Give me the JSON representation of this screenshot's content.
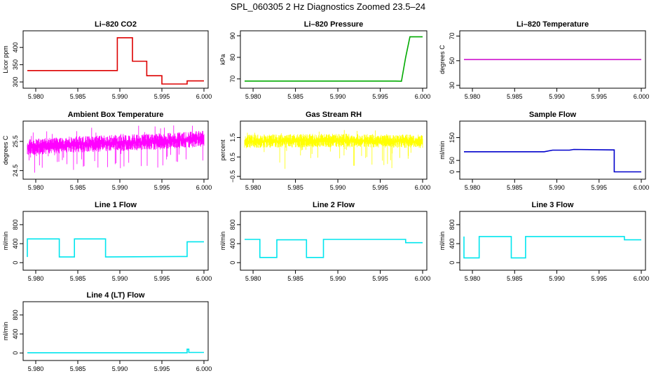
{
  "page_title": "SPL_060305  2 Hz Diagnostics Zoomed 23.5–24",
  "chart_data": [
    {
      "type": "line",
      "title": "Li–820 CO2",
      "ylabel": "Licor ppm",
      "color": "#dd0000",
      "xlim": [
        5.979,
        6.0
      ],
      "ylim": [
        290,
        440
      ],
      "yticks": [
        "300",
        "350",
        "400"
      ],
      "ytick_values": [
        300,
        350,
        400
      ],
      "xticks": [
        "5.980",
        "5.985",
        "5.990",
        "5.995",
        "6.000"
      ],
      "xtick_values": [
        5.98,
        5.985,
        5.99,
        5.995,
        6.0
      ],
      "series": [
        {
          "x": [
            5.979,
            5.9897,
            5.9897,
            5.9915,
            5.9915,
            5.9932,
            5.9932,
            5.995,
            5.995,
            5.998,
            5.998,
            6.0
          ],
          "y": [
            333,
            333,
            428,
            428,
            360,
            360,
            318,
            318,
            294,
            294,
            303,
            303
          ]
        }
      ]
    },
    {
      "type": "line",
      "title": "Li–820 Pressure",
      "ylabel": "kPa",
      "color": "#00aa00",
      "xlim": [
        5.979,
        6.0
      ],
      "ylim": [
        67,
        91
      ],
      "yticks": [
        "70",
        "80",
        "90"
      ],
      "ytick_values": [
        70,
        80,
        90
      ],
      "xticks": [
        "5.980",
        "5.985",
        "5.990",
        "5.995",
        "6.000"
      ],
      "xtick_values": [
        5.98,
        5.985,
        5.99,
        5.995,
        6.0
      ],
      "series": [
        {
          "x": [
            5.979,
            5.9968,
            5.9975,
            5.998,
            5.9985,
            6.0
          ],
          "y": [
            69,
            69,
            68.9,
            80,
            89.5,
            89.5
          ]
        }
      ]
    },
    {
      "type": "line",
      "title": "Li–820 Temperature",
      "ylabel": "degrees C",
      "color": "#cc00cc",
      "xlim": [
        5.979,
        6.0
      ],
      "ylim": [
        30,
        72
      ],
      "yticks": [
        "30",
        "50",
        "70"
      ],
      "ytick_values": [
        30,
        50,
        70
      ],
      "xticks": [
        "5.980",
        "5.985",
        "5.990",
        "5.995",
        "6.000"
      ],
      "xtick_values": [
        5.98,
        5.985,
        5.99,
        5.995,
        6.0
      ],
      "series": [
        {
          "x": [
            5.979,
            6.0
          ],
          "y": [
            51,
            51
          ]
        }
      ]
    },
    {
      "type": "line",
      "title": "Ambient Box Temperature",
      "ylabel": "degrees C",
      "color": "#ff00ff",
      "xlim": [
        5.979,
        6.0
      ],
      "ylim": [
        24.3,
        26.1
      ],
      "yticks": [
        "24.5",
        "25.5"
      ],
      "ytick_values": [
        24.5,
        25.5
      ],
      "xticks": [
        "5.980",
        "5.985",
        "5.990",
        "5.995",
        "6.000"
      ],
      "xtick_values": [
        5.98,
        5.985,
        5.99,
        5.995,
        6.0
      ],
      "series": [
        {
          "x": [
            5.979,
            5.985,
            5.99,
            5.995,
            6.0
          ],
          "y": [
            25.3,
            25.4,
            25.45,
            25.5,
            25.6
          ]
        }
      ]
    },
    {
      "type": "line",
      "title": "Gas Stream RH",
      "ylabel": "percent",
      "color": "#ffff00",
      "xlim": [
        5.979,
        6.0
      ],
      "ylim": [
        -0.5,
        2.2
      ],
      "yticks": [
        "−0.5",
        "0.5",
        "1.5"
      ],
      "ytick_values": [
        -0.5,
        0.5,
        1.5
      ],
      "xticks": [
        "5.980",
        "5.985",
        "5.990",
        "5.995",
        "6.000"
      ],
      "xtick_values": [
        5.98,
        5.985,
        5.99,
        5.995,
        6.0
      ],
      "series": [
        {
          "x": [
            5.979,
            5.99,
            6.0
          ],
          "y": [
            1.3,
            1.35,
            1.3
          ]
        }
      ]
    },
    {
      "type": "line",
      "title": "Sample Flow",
      "ylabel": "ml/min",
      "color": "#0000cc",
      "xlim": [
        5.979,
        6.0
      ],
      "ylim": [
        -20,
        210
      ],
      "yticks": [
        "0",
        "50",
        "150"
      ],
      "ytick_values": [
        0,
        50,
        150
      ],
      "xticks": [
        "5.980",
        "5.985",
        "5.990",
        "5.995",
        "6.000"
      ],
      "xtick_values": [
        5.98,
        5.985,
        5.99,
        5.995,
        6.0
      ],
      "series": [
        {
          "x": [
            5.979,
            5.9885,
            5.9895,
            5.9915,
            5.992,
            5.9968,
            5.9968,
            6.0
          ],
          "y": [
            88,
            88,
            95,
            95,
            98,
            96,
            0,
            0
          ]
        }
      ]
    },
    {
      "type": "line",
      "title": "Line 1 Flow",
      "ylabel": "ml/min",
      "color": "#00e5ee",
      "xlim": [
        5.979,
        6.0
      ],
      "ylim": [
        -100,
        1020
      ],
      "yticks": [
        "0",
        "400",
        "800"
      ],
      "ytick_values": [
        0,
        400,
        800
      ],
      "xticks": [
        "5.980",
        "5.985",
        "5.990",
        "5.995",
        "6.000"
      ],
      "xtick_values": [
        5.98,
        5.985,
        5.99,
        5.995,
        6.0
      ],
      "series": [
        {
          "x": [
            5.979,
            5.979,
            5.9828,
            5.9828,
            5.9846,
            5.9846,
            5.9883,
            5.9883,
            5.998,
            5.998,
            6.0
          ],
          "y": [
            120,
            500,
            500,
            120,
            120,
            500,
            500,
            120,
            130,
            440,
            440
          ]
        }
      ]
    },
    {
      "type": "line",
      "title": "Line 2 Flow",
      "ylabel": "ml/min",
      "color": "#00e5ee",
      "xlim": [
        5.979,
        6.0
      ],
      "ylim": [
        -100,
        1020
      ],
      "yticks": [
        "0",
        "400",
        "800"
      ],
      "ytick_values": [
        0,
        400,
        800
      ],
      "xticks": [
        "5.980",
        "5.985",
        "5.990",
        "5.995",
        "6.000"
      ],
      "xtick_values": [
        5.98,
        5.985,
        5.99,
        5.995,
        6.0
      ],
      "series": [
        {
          "x": [
            5.979,
            5.9808,
            5.9808,
            5.9828,
            5.9828,
            5.9863,
            5.9863,
            5.9883,
            5.9883,
            5.998,
            5.998,
            6.0
          ],
          "y": [
            490,
            490,
            110,
            110,
            480,
            480,
            110,
            110,
            490,
            490,
            420,
            420
          ]
        }
      ]
    },
    {
      "type": "line",
      "title": "Line 3 Flow",
      "ylabel": "ml/min",
      "color": "#00e5ee",
      "xlim": [
        5.979,
        6.0
      ],
      "ylim": [
        -100,
        1020
      ],
      "yticks": [
        "0",
        "400",
        "800"
      ],
      "ytick_values": [
        0,
        400,
        800
      ],
      "xticks": [
        "5.980",
        "5.985",
        "5.990",
        "5.995",
        "6.000"
      ],
      "xtick_values": [
        5.98,
        5.985,
        5.99,
        5.995,
        6.0
      ],
      "series": [
        {
          "x": [
            5.979,
            5.979,
            5.9808,
            5.9808,
            5.9846,
            5.9846,
            5.9863,
            5.9863,
            5.998,
            5.998,
            6.0
          ],
          "y": [
            550,
            100,
            100,
            550,
            550,
            100,
            100,
            550,
            550,
            480,
            480
          ]
        }
      ]
    },
    {
      "type": "line",
      "title": "Line 4 (LT) Flow",
      "ylabel": "ml/min",
      "color": "#00e5ee",
      "xlim": [
        5.979,
        6.0
      ],
      "ylim": [
        -100,
        1020
      ],
      "yticks": [
        "0",
        "400",
        "800"
      ],
      "ytick_values": [
        0,
        400,
        800
      ],
      "xticks": [
        "5.980",
        "5.985",
        "5.990",
        "5.995",
        "6.000"
      ],
      "xtick_values": [
        5.98,
        5.985,
        5.99,
        5.995,
        6.0
      ],
      "series": [
        {
          "x": [
            5.979,
            5.998,
            5.998,
            5.9982,
            5.9982,
            6.0
          ],
          "y": [
            5,
            5,
            80,
            80,
            10,
            10
          ]
        }
      ]
    }
  ]
}
